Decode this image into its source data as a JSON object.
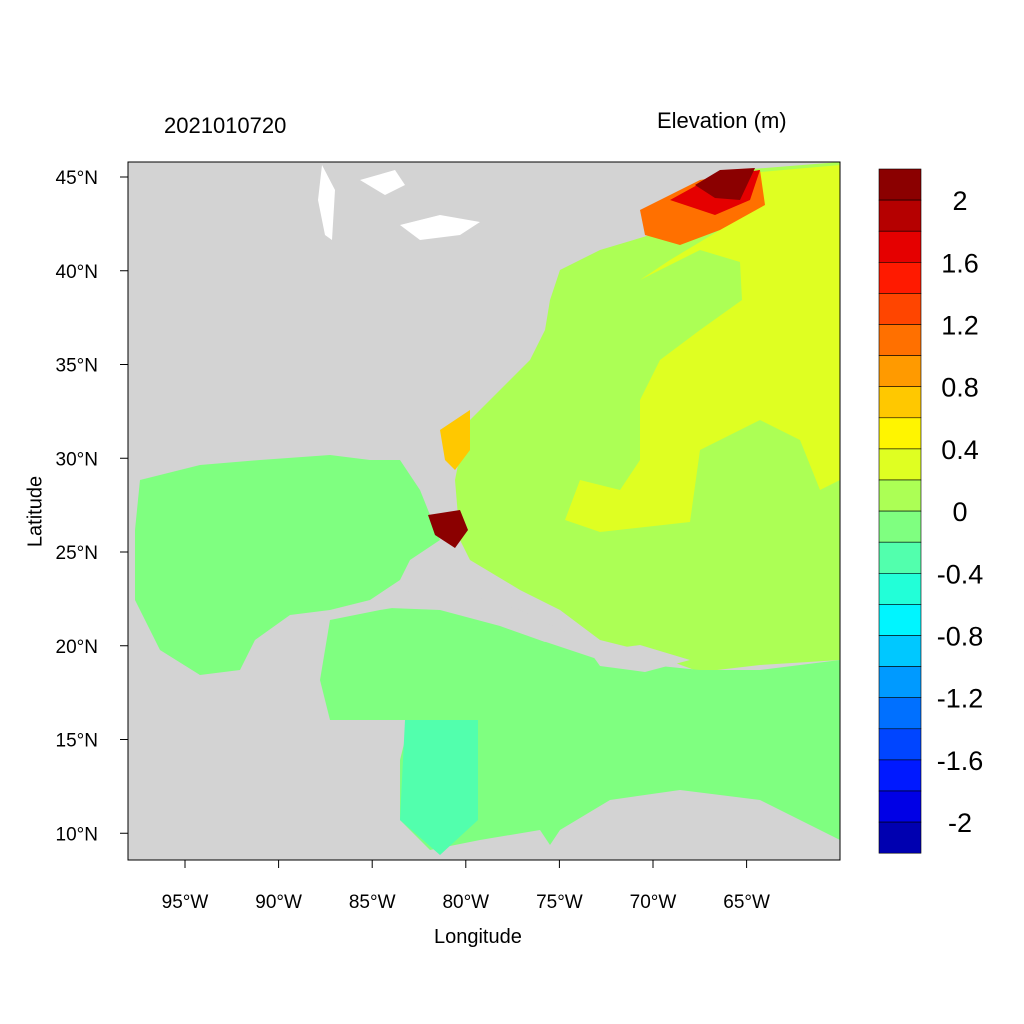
{
  "header": {
    "date_label": "2021010720",
    "variable_title": "Elevation (m)"
  },
  "chart_data": {
    "type": "heatmap",
    "title": "Elevation (m)",
    "subtitle": "2021010720",
    "xlabel": "Longitude",
    "ylabel": "Latitude",
    "xlim": [
      -98,
      -60
    ],
    "ylim": [
      8.6,
      45.8
    ],
    "x_ticks": [
      -95,
      -90,
      -85,
      -80,
      -75,
      -70,
      -65
    ],
    "x_tick_labels": [
      "95°W",
      "90°W",
      "85°W",
      "80°W",
      "75°W",
      "70°W",
      "65°W"
    ],
    "y_ticks": [
      45,
      40,
      35,
      30,
      25,
      20,
      15,
      10
    ],
    "y_tick_labels": [
      "45°N",
      "40°N",
      "35°N",
      "30°N",
      "25°N",
      "20°N",
      "15°N",
      "10°N"
    ],
    "land_color": "#d3d3d3",
    "colorbar": {
      "labels": [
        "2",
        "1.6",
        "1.2",
        "0.8",
        "0.4",
        "0",
        "-0.4",
        "-0.8",
        "-1.2",
        "-1.6",
        "-2"
      ],
      "colors": [
        "#8b0000",
        "#b50000",
        "#e50000",
        "#ff1a00",
        "#ff4500",
        "#ff7000",
        "#ff9a00",
        "#ffc800",
        "#fff500",
        "#dfff22",
        "#acff55",
        "#7fff80",
        "#52ffad",
        "#22ffd8",
        "#00f5ff",
        "#00c8ff",
        "#009aff",
        "#0070ff",
        "#0045ff",
        "#0019ff",
        "#0000e6",
        "#0000b0"
      ]
    }
  }
}
